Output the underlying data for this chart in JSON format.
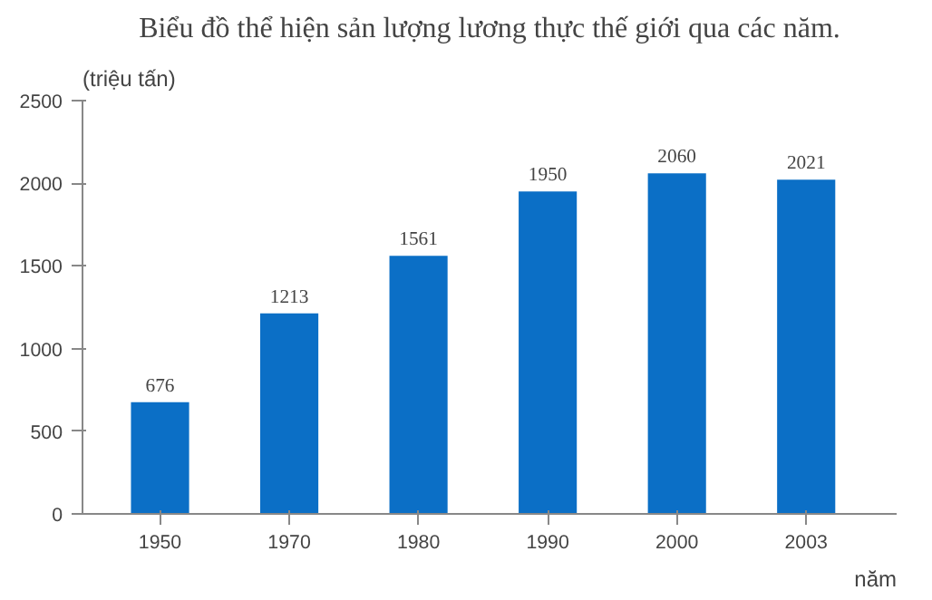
{
  "chart_data": {
    "type": "bar",
    "title": "Biểu đồ thể hiện sản lượng lương thực thế giới qua các năm.",
    "ylabel": "(triệu tấn)",
    "xlabel": "năm",
    "categories": [
      "1950",
      "1970",
      "1980",
      "1990",
      "2000",
      "2003"
    ],
    "values": [
      676,
      1213,
      1561,
      1950,
      2060,
      2021
    ],
    "color": "#0b6fc6",
    "ylim": [
      0,
      2500
    ],
    "yticks": [
      0,
      500,
      1000,
      1500,
      2000,
      2500
    ],
    "grid": false,
    "data_labels": true
  }
}
